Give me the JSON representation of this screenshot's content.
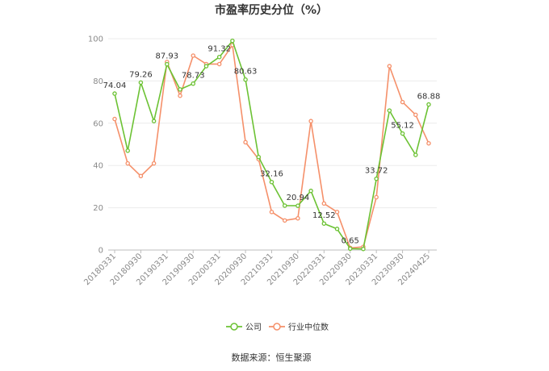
{
  "chart_data": {
    "type": "line",
    "title": "市盈率历史分位（%）",
    "ylim": [
      0,
      100
    ],
    "yticks": [
      0,
      20,
      40,
      60,
      80,
      100
    ],
    "grid": true,
    "legend_position": "bottom",
    "x_tick_labels": [
      "20180331",
      "20180930",
      "20190331",
      "20190930",
      "20200331",
      "20200930",
      "20210331",
      "20210930",
      "20220331",
      "20220930",
      "20230331",
      "20230930",
      "20240425"
    ],
    "series": [
      {
        "name": "公司",
        "color": "#6cc234",
        "values": [
          74.04,
          47,
          79.26,
          61,
          87.93,
          76,
          78.73,
          87,
          91.32,
          99,
          80.63,
          44,
          32.16,
          21,
          20.94,
          28,
          12.52,
          10,
          0.65,
          0.5,
          33.72,
          66,
          55.12,
          45,
          68.88
        ]
      },
      {
        "name": "行业中位数",
        "color": "#f5906a",
        "values": [
          62,
          41,
          35,
          41,
          89,
          73,
          92,
          88,
          88,
          97,
          51,
          43,
          18,
          14,
          15,
          61,
          22,
          18,
          1,
          1.5,
          25,
          87,
          70,
          64,
          50.5
        ]
      }
    ],
    "data_labels": [
      {
        "index": 0,
        "text": "74.04"
      },
      {
        "index": 2,
        "text": "79.26"
      },
      {
        "index": 4,
        "text": "87.93"
      },
      {
        "index": 6,
        "text": "78.73"
      },
      {
        "index": 8,
        "text": "91.32"
      },
      {
        "index": 10,
        "text": "80.63"
      },
      {
        "index": 12,
        "text": "32.16"
      },
      {
        "index": 14,
        "text": "20.94"
      },
      {
        "index": 16,
        "text": "12.52"
      },
      {
        "index": 18,
        "text": "0.65"
      },
      {
        "index": 20,
        "text": "33.72"
      },
      {
        "index": 22,
        "text": "55.12"
      },
      {
        "index": 24,
        "text": "68.88"
      }
    ]
  },
  "source_text": "数据来源：恒生聚源"
}
